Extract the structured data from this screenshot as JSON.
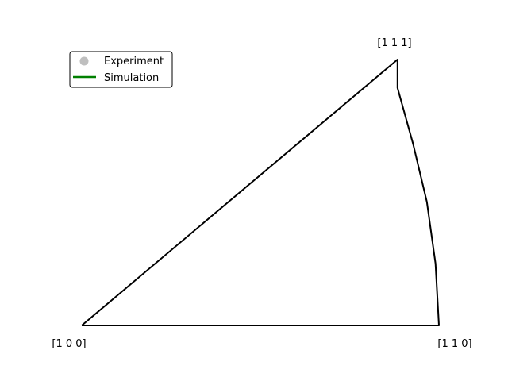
{
  "chart_data": {
    "type": "scatter",
    "title": "",
    "xlabel": "",
    "ylabel": "",
    "grid": false,
    "axes_visible": false,
    "corner_labels": [
      {
        "name": "100",
        "text": "[1 0 0]"
      },
      {
        "name": "110",
        "text": "[1 1 0]"
      },
      {
        "name": "111",
        "text": "[1 1 1]"
      }
    ],
    "triangle_outline": [
      [
        0.0,
        0.0
      ],
      [
        0.414,
        0.0
      ],
      [
        0.41,
        0.085
      ],
      [
        0.4,
        0.17
      ],
      [
        0.384,
        0.25
      ],
      [
        0.366,
        0.327
      ],
      [
        0.366,
        0.366
      ],
      [
        0.0,
        0.0
      ]
    ],
    "xlim": [
      0.0,
      0.414
    ],
    "ylim": [
      0.0,
      0.366
    ],
    "legend": {
      "placement": "upper-left",
      "entries": [
        {
          "label": "Experiment",
          "marker": "circle",
          "color": "#bfbfbf"
        },
        {
          "label": "Simulation",
          "marker": "line",
          "color": "#008000"
        }
      ]
    },
    "series": [
      {
        "name": "Experiment",
        "points": []
      },
      {
        "name": "Simulation",
        "points": []
      }
    ],
    "outline_color": "#000000"
  }
}
